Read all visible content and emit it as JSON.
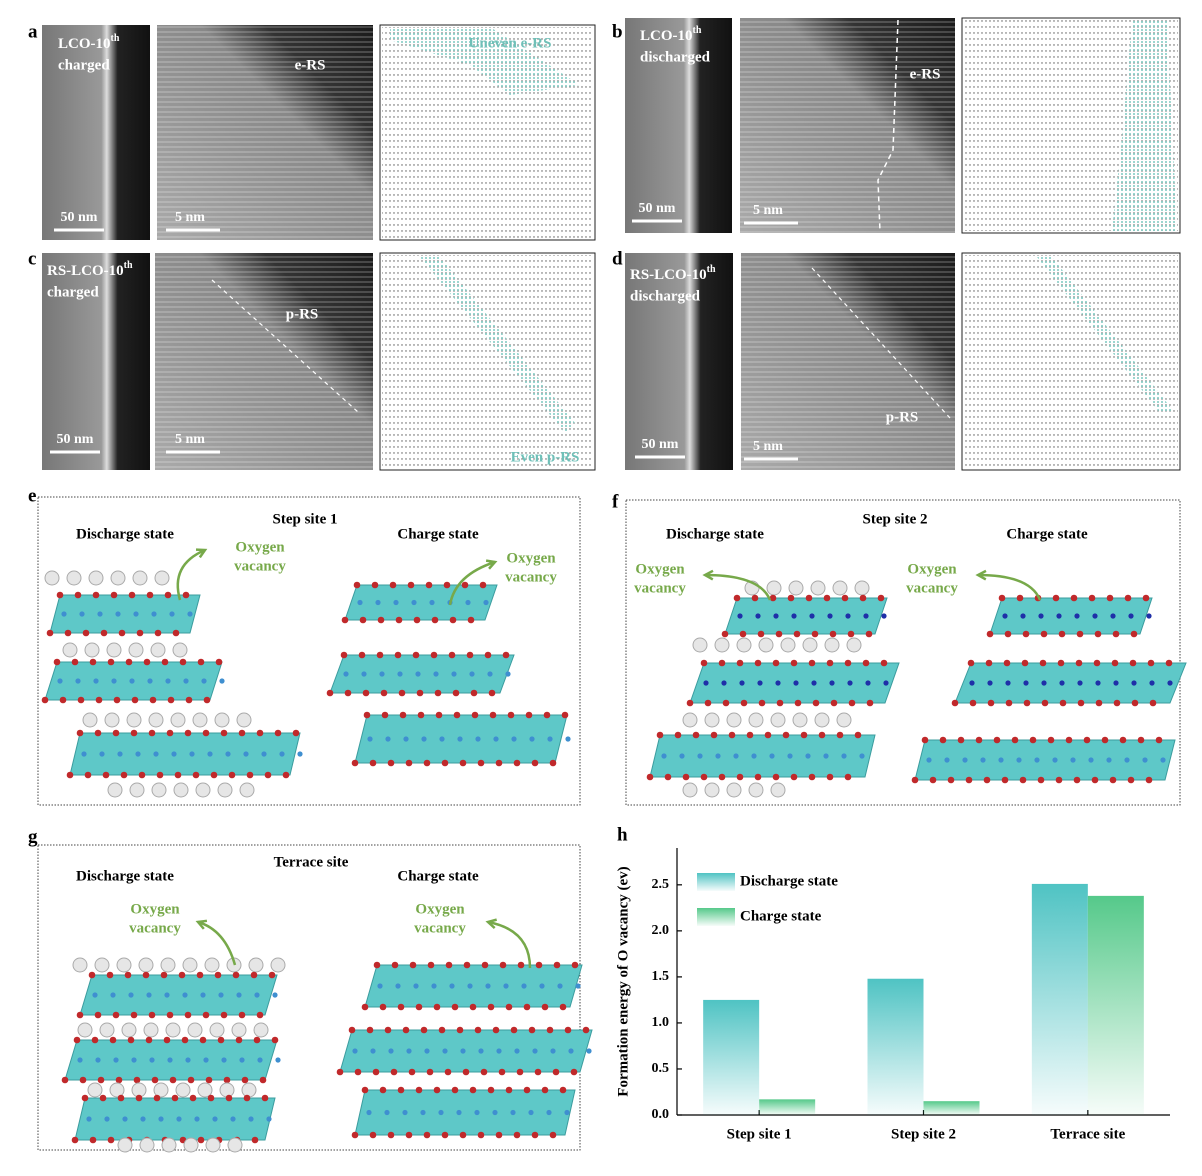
{
  "panels": {
    "a": {
      "label": "a",
      "sample": [
        "LCO-10",
        "th",
        "charged"
      ],
      "scale_low": "50 nm",
      "scale_high": "5 nm",
      "phase": "e-RS",
      "map_label": "Uneven e-RS"
    },
    "b": {
      "label": "b",
      "sample": [
        "LCO-10",
        "th",
        "discharged"
      ],
      "scale_low": "50 nm",
      "scale_high": "5 nm",
      "phase": "e-RS"
    },
    "c": {
      "label": "c",
      "sample": [
        "RS-LCO-10",
        "th",
        "charged"
      ],
      "scale_low": "50 nm",
      "scale_high": "5 nm",
      "phase": "p-RS",
      "map_label": "Even p-RS"
    },
    "d": {
      "label": "d",
      "sample": [
        "RS-LCO-10",
        "th",
        "discharged"
      ],
      "scale_low": "50 nm",
      "scale_high": "5 nm",
      "phase": "p-RS"
    },
    "e": {
      "label": "e",
      "title": "Step site 1",
      "left": "Discharge state",
      "right": "Charge state",
      "vacancy_left": [
        "Oxygen",
        "vacancy"
      ],
      "vacancy_right": [
        "Oxygen",
        "vacancy"
      ]
    },
    "f": {
      "label": "f",
      "title": "Step site 2",
      "left": "Discharge state",
      "right": "Charge state",
      "vacancy_left": [
        "Oxygen",
        "vacancy"
      ],
      "vacancy_right": [
        "Oxygen",
        "vacancy"
      ]
    },
    "g": {
      "label": "g",
      "title": "Terrace site",
      "left": "Discharge state",
      "right": "Charge state",
      "vacancy_left": [
        "Oxygen",
        "vacancy"
      ],
      "vacancy_right": [
        "Oxygen",
        "vacancy"
      ]
    },
    "h": {
      "label": "h"
    }
  },
  "chart_data": {
    "type": "bar",
    "ylabel": "Formation energy of O vacancy (ev)",
    "categories": [
      "Step site 1",
      "Step site 2",
      "Terrace site"
    ],
    "series": [
      {
        "name": "Discharge state",
        "color": "#4fc3c3",
        "values": [
          1.25,
          1.48,
          2.51
        ]
      },
      {
        "name": "Charge state",
        "color": "#55c98a",
        "values": [
          0.17,
          0.15,
          2.38
        ]
      }
    ],
    "ylim": [
      0,
      2.9
    ],
    "yticks": [
      {
        "value": 0,
        "label": "0.0"
      },
      0.5,
      {
        "value": 1,
        "label": "1.0"
      },
      1.5,
      {
        "value": 2,
        "label": "2.0"
      },
      2.5
    ],
    "legend": "upper-left"
  }
}
